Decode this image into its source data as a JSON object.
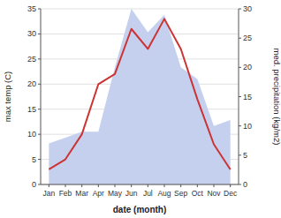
{
  "chart_data": {
    "type": "line",
    "xlabel": "date (month)",
    "ylabel": "max temp (C)",
    "y2label": "med. precipitation (kg/m2)",
    "categories": [
      "Jan",
      "Feb",
      "Mar",
      "Apr",
      "May",
      "Jun",
      "Jul",
      "Aug",
      "Sep",
      "Oct",
      "Nov",
      "Dec"
    ],
    "series": [
      {
        "type": "area",
        "axis": "y2",
        "color": "#c5d0ee",
        "values": [
          7,
          8,
          9,
          9,
          20,
          30,
          26,
          29,
          20,
          18,
          10,
          11
        ]
      },
      {
        "type": "line",
        "color": "#cc3333",
        "values": [
          3,
          5,
          10,
          20,
          22,
          31,
          27,
          33,
          27,
          17,
          8,
          3
        ]
      }
    ],
    "ylim": [
      0,
      35
    ],
    "yticks": [
      0,
      5,
      10,
      15,
      20,
      25,
      30,
      35
    ],
    "y2lim": [
      0,
      30
    ],
    "y2ticks": [
      0,
      5,
      10,
      15,
      20,
      25,
      30
    ],
    "grid": true
  }
}
